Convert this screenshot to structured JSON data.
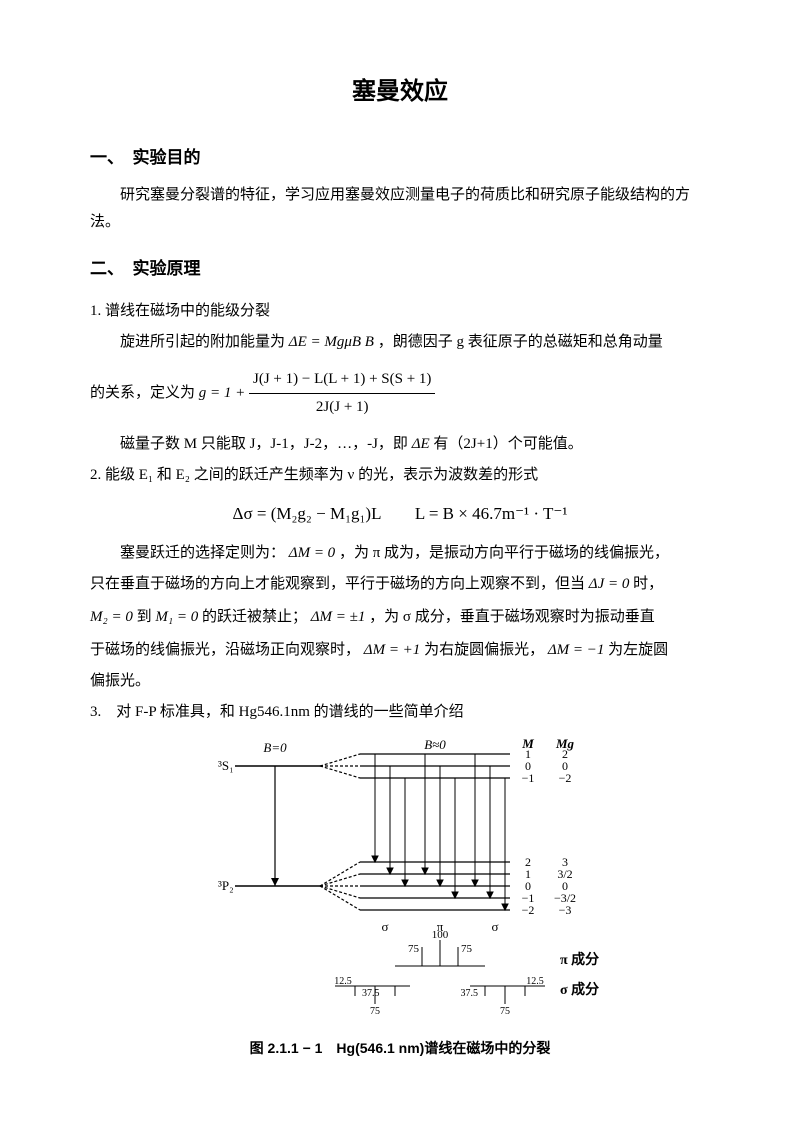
{
  "title": "塞曼效应",
  "section1": {
    "heading": "一、　实验目的",
    "p1": "研究塞曼分裂谱的特征，学习应用塞曼效应测量电子的荷质比和研究原子能级结构的方法。"
  },
  "section2": {
    "heading": "二、　实验原理",
    "sub1_heading": "1. 谱线在磁场中的能级分裂",
    "sub1_p1_a": "旋进所引起的附加能量为",
    "sub1_p1_formula": "ΔE = MgμB B",
    "sub1_p1_b": "，朗德因子 g 表征原子的总磁矩和总角动量",
    "sub1_p2_a": "的关系，定义为",
    "g_prefix": "g = 1 + ",
    "frac_num": "J(J + 1) − L(L + 1) + S(S + 1)",
    "frac_den": "2J(J + 1)",
    "sub1_p3": "磁量子数 M 只能取 J，J-1，J-2，…，-J，即",
    "sub1_p3_f": "ΔE",
    "sub1_p3_b": "有（2J+1）个可能值。",
    "sub2_heading": "2. 能级 E₁ 和 E₂ 之间的跃迁产生频率为 ν 的光，表示为波数差的形式",
    "formula2": "Δσ = (M₂g₂ − M₁g₁)L　　L = B × 46.7m⁻¹ · T⁻¹",
    "sub2_p1_a": "塞曼跃迁的选择定则为：",
    "dm0": "ΔM = 0",
    "sub2_p1_b": "，为 π 成为，是振动方向平行于磁场的线偏振光，",
    "sub2_p2_a": "只在垂直于磁场的方向上才能观察到，平行于磁场的方向上观察不到，但当",
    "dj0": "ΔJ = 0",
    "sub2_p2_b": "时，",
    "sub2_p3_a": "",
    "m2": "M₂ = 0",
    "to": "到",
    "m1": "M₁ = 0",
    "sub2_p3_b": "的跃迁被禁止；",
    "dm1": "ΔM = ±1",
    "sub2_p3_c": "，为 σ 成分，垂直于磁场观察时为振动垂直",
    "sub2_p4_a": "于磁场的线偏振光，沿磁场正向观察时，",
    "dmp1": "ΔM = +1",
    "sub2_p4_b": "为右旋圆偏振光，",
    "dmn1": "ΔM = −1",
    "sub2_p4_c": "为左旋圆",
    "sub2_p5": "偏振光。",
    "sub3": "3.　对 F-P 标准具，和 Hg546.1nm 的谱线的一些简单介绍"
  },
  "figure": {
    "caption": "图 2.1.1 − 1　Hg(546.1 nm)谱线在磁场中的分裂",
    "labels": {
      "B0": "B=0",
      "Bn0": "B≈0",
      "M": "M",
      "Mg": "Mg",
      "s1": "³S₁",
      "p2": "³P₂",
      "sigma": "σ",
      "pi": "π",
      "pi_comp": "π 成分",
      "sigma_comp": "σ 成分",
      "n100": "100",
      "n75": "75",
      "n375": "37.5",
      "n125": "12.5"
    },
    "m_upper": [
      "1",
      "0",
      "−1"
    ],
    "mg_upper": [
      "2",
      "0",
      "−2"
    ],
    "m_lower": [
      "2",
      "1",
      "0",
      "−1",
      "−2"
    ],
    "mg_lower": [
      "3",
      "3/2",
      "0",
      "−3/2",
      "−3"
    ],
    "colors": {
      "line": "#000000",
      "bg": "#ffffff"
    }
  }
}
